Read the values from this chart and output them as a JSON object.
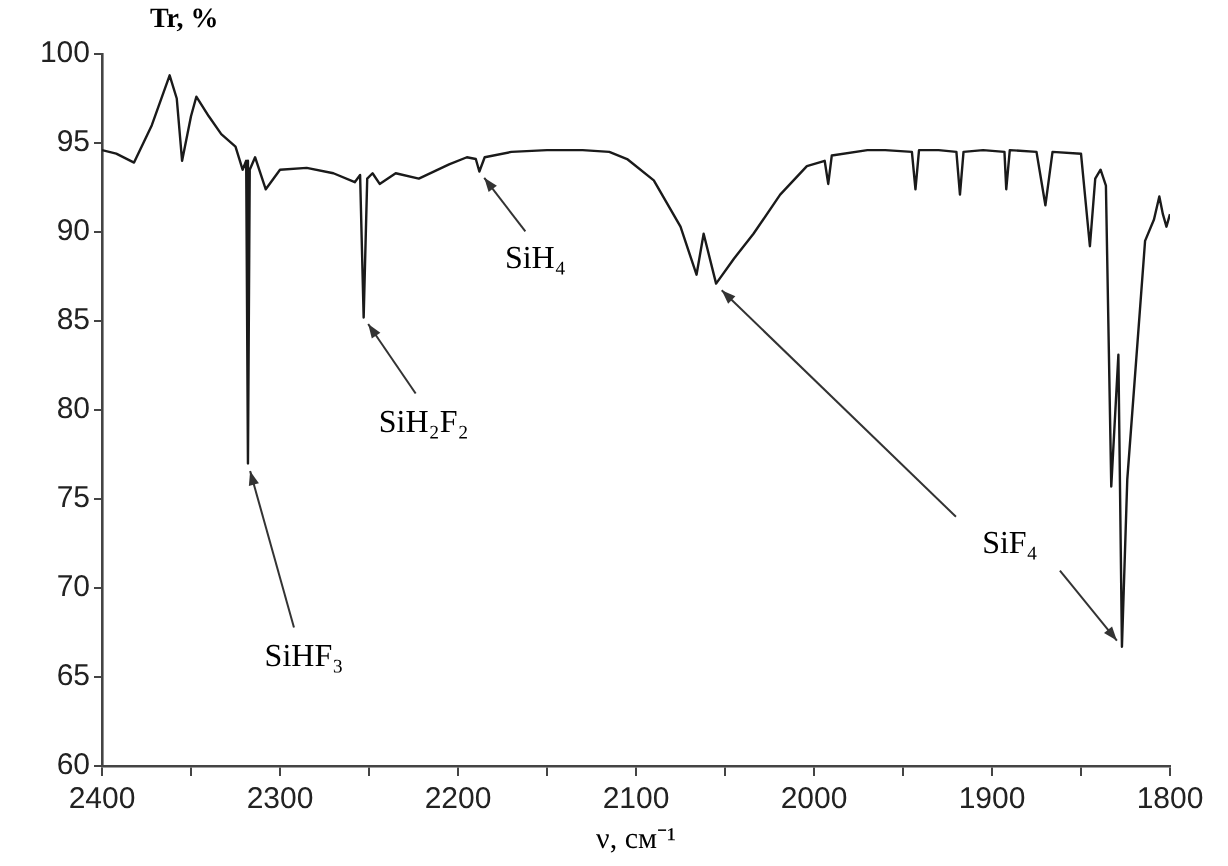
{
  "chart_data": {
    "type": "line",
    "ylabel": "Tr, %",
    "xlabel": "ν, см⁻¹",
    "x": [
      2400,
      2392,
      2382,
      2372,
      2362,
      2358,
      2355,
      2350,
      2347,
      2340,
      2333,
      2325,
      2321,
      2319,
      2318,
      2317,
      2314,
      2308,
      2300,
      2285,
      2270,
      2258,
      2255,
      2253,
      2251,
      2248,
      2244,
      2235,
      2222,
      2205,
      2195,
      2190,
      2188,
      2185,
      2170,
      2150,
      2130,
      2115,
      2105,
      2090,
      2075,
      2066,
      2062,
      2055,
      2045,
      2034,
      2019,
      2004,
      1994,
      1992,
      1990,
      1970,
      1960,
      1945,
      1943,
      1941,
      1930,
      1920,
      1918,
      1916,
      1905,
      1893,
      1892,
      1890,
      1875,
      1870,
      1866,
      1850,
      1845,
      1842,
      1839,
      1836,
      1833,
      1829,
      1827,
      1824,
      1814,
      1809,
      1806,
      1804,
      1802,
      1800
    ],
    "series": [
      {
        "color": "#1a1a1a",
        "values": [
          94.6,
          94.4,
          93.9,
          96,
          98.8,
          97.5,
          94,
          96.5,
          97.6,
          96.5,
          95.5,
          94.8,
          93.5,
          94,
          77,
          93.5,
          94.2,
          92.4,
          93.5,
          93.6,
          93.3,
          92.8,
          93.2,
          85.2,
          93,
          93.3,
          92.7,
          93.3,
          93,
          93.8,
          94.2,
          94.1,
          93.4,
          94.2,
          94.5,
          94.6,
          94.6,
          94.5,
          94.1,
          92.9,
          90.3,
          87.6,
          89.9,
          87.1,
          88.5,
          89.9,
          92.1,
          93.7,
          94,
          92.7,
          94.3,
          94.6,
          94.6,
          94.5,
          92.4,
          94.6,
          94.6,
          94.5,
          92.1,
          94.5,
          94.6,
          94.5,
          92.4,
          94.6,
          94.5,
          91.5,
          94.5,
          94.4,
          89.2,
          93,
          93.5,
          92.6,
          75.7,
          83.1,
          66.7,
          76.1,
          89.5,
          90.7,
          92,
          91,
          90.3,
          91
        ]
      }
    ],
    "xlim": [
      2400,
      1800
    ],
    "xticks": [
      2400,
      {
        "value": 2350,
        "label": null
      },
      2300,
      {
        "value": 2250,
        "label": null
      },
      2200,
      {
        "value": 2150,
        "label": null
      },
      2100,
      {
        "value": 2050,
        "label": null
      },
      2000,
      {
        "value": 1950,
        "label": null
      },
      1900,
      {
        "value": 1850,
        "label": null
      },
      1800
    ],
    "ylim": [
      60,
      100
    ],
    "yticks": [
      60,
      65,
      70,
      75,
      80,
      85,
      90,
      95,
      100
    ],
    "marker": "none",
    "line_style": "solid",
    "legend": false,
    "grid": false,
    "annotations": [
      {
        "text": "SiHF₃",
        "x": 2318,
        "y": 77
      },
      {
        "text": "SiH₂F₂",
        "x": 2253,
        "y": 85.2
      },
      {
        "text": "SiH₄",
        "x": 2188,
        "y": 93.4
      },
      {
        "text": "SiF₄",
        "x": 1827,
        "y": 66.7
      }
    ]
  }
}
